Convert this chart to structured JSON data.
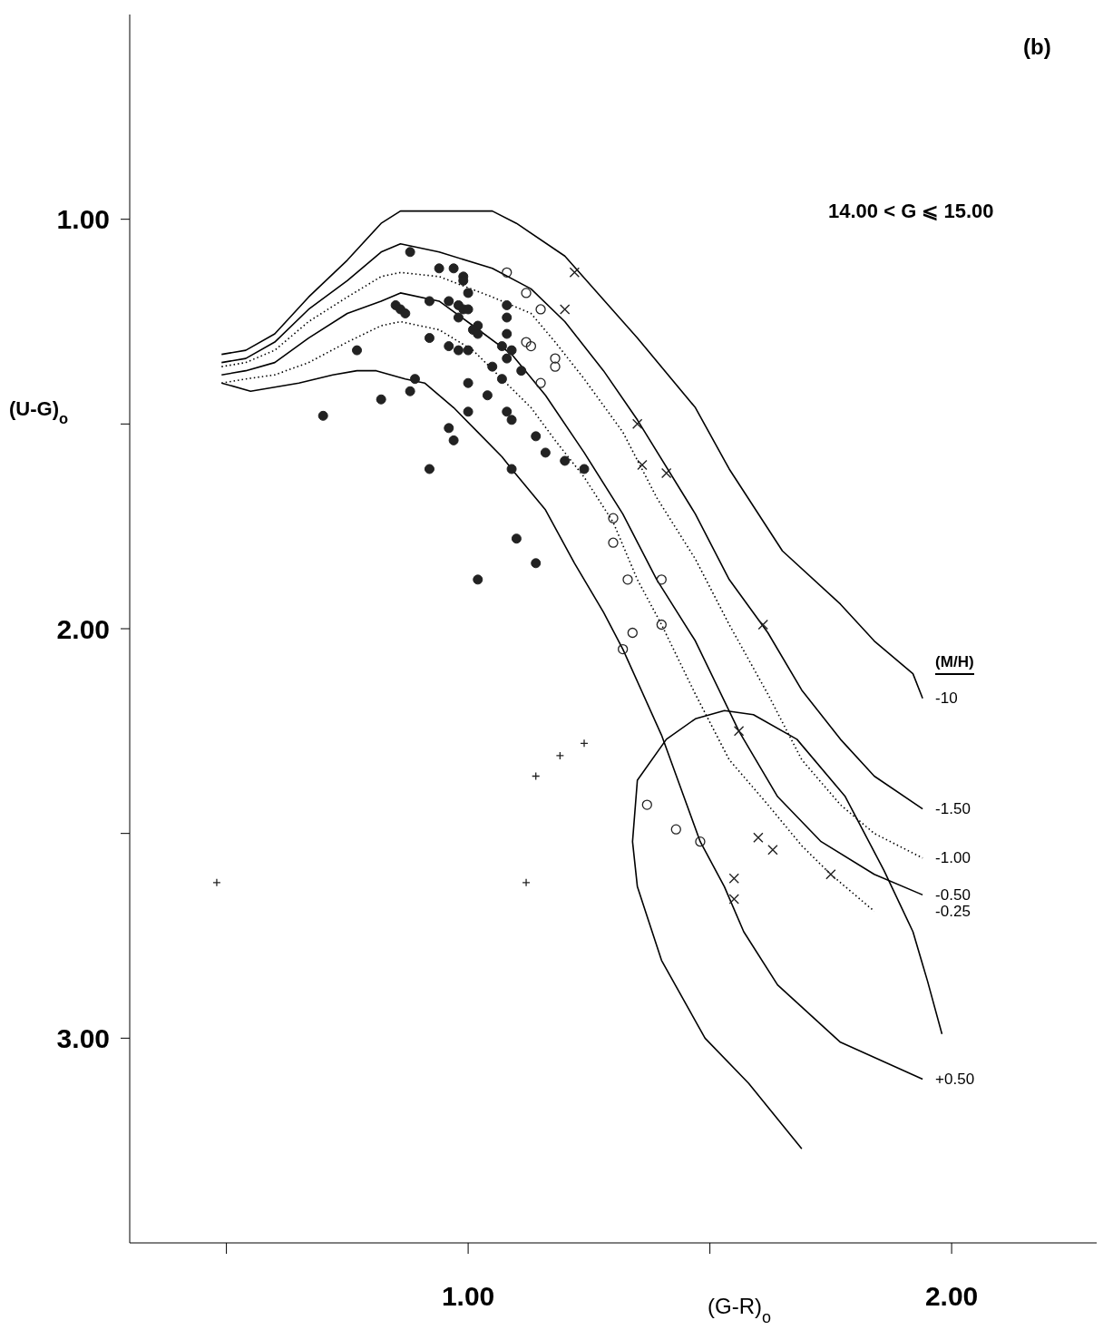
{
  "chart_data": {
    "type": "scatter",
    "annotations": [
      "(b)",
      "14.00 < G ⩽ 15.00"
    ],
    "xlabel": "(G-R)$_{o}$",
    "ylabel": "(U-G)$_{o}$",
    "legend_title": "(M/H)",
    "xlim": [
      0.3,
      2.3
    ],
    "ylim": [
      3.5,
      0.5
    ],
    "xticks": [
      {
        "value": 0.5,
        "label": null
      },
      {
        "value": 1,
        "label": "1.00"
      },
      {
        "value": 1.5,
        "label": null
      },
      {
        "value": 2,
        "label": "2.00"
      }
    ],
    "yticks": [
      {
        "value": 1,
        "label": "1.00"
      },
      {
        "value": 1.5,
        "label": null
      },
      {
        "value": 2,
        "label": "2.00"
      },
      {
        "value": 2.5,
        "label": null
      },
      {
        "value": 3,
        "label": "3.00"
      }
    ],
    "grid": false,
    "legend": "right",
    "series": [
      {
        "name": "-10",
        "type": "line",
        "line_style": "solid",
        "color": "#000000",
        "x": [
          0.49,
          0.54,
          0.6,
          0.67,
          0.75,
          0.82,
          0.86,
          1.05,
          1.1,
          1.2,
          1.35,
          1.47,
          1.54,
          1.65,
          1.77,
          1.84,
          1.92,
          1.94
        ],
        "values": [
          1.33,
          1.32,
          1.28,
          1.19,
          1.1,
          1.01,
          0.98,
          0.98,
          1.01,
          1.09,
          1.29,
          1.46,
          1.61,
          1.81,
          1.94,
          2.03,
          2.11,
          2.17
        ]
      },
      {
        "name": "-1.50",
        "type": "line",
        "line_style": "solid",
        "color": "#000000",
        "x": [
          0.49,
          0.54,
          0.6,
          0.67,
          0.75,
          0.82,
          0.86,
          0.94,
          1.05,
          1.13,
          1.2,
          1.28,
          1.35,
          1.47,
          1.54,
          1.62,
          1.69,
          1.77,
          1.84,
          1.94
        ],
        "values": [
          1.35,
          1.34,
          1.3,
          1.22,
          1.15,
          1.08,
          1.06,
          1.08,
          1.12,
          1.17,
          1.25,
          1.37,
          1.49,
          1.72,
          1.88,
          2.01,
          2.15,
          2.27,
          2.36,
          2.44
        ]
      },
      {
        "name": "-1.00",
        "type": "line",
        "line_style": "dotted",
        "color": "#000000",
        "x": [
          0.49,
          0.54,
          0.6,
          0.67,
          0.75,
          0.82,
          0.86,
          0.94,
          1.05,
          1.13,
          1.18,
          1.24,
          1.32,
          1.39,
          1.47,
          1.54,
          1.62,
          1.69,
          1.77,
          1.84,
          1.94
        ],
        "values": [
          1.36,
          1.35,
          1.32,
          1.25,
          1.19,
          1.14,
          1.13,
          1.14,
          1.19,
          1.23,
          1.3,
          1.39,
          1.52,
          1.68,
          1.83,
          1.99,
          2.16,
          2.32,
          2.43,
          2.5,
          2.56
        ]
      },
      {
        "name": "-0.50",
        "type": "line",
        "line_style": "solid",
        "color": "#000000",
        "x": [
          0.49,
          0.54,
          0.6,
          0.67,
          0.75,
          0.82,
          0.86,
          0.94,
          1.01,
          1.09,
          1.16,
          1.24,
          1.32,
          1.39,
          1.47,
          1.56,
          1.64,
          1.73,
          1.84,
          1.94
        ],
        "values": [
          1.38,
          1.37,
          1.35,
          1.29,
          1.23,
          1.2,
          1.18,
          1.2,
          1.26,
          1.33,
          1.43,
          1.57,
          1.72,
          1.88,
          2.03,
          2.25,
          2.41,
          2.52,
          2.6,
          2.65
        ]
      },
      {
        "name": "-0.25",
        "type": "line",
        "line_style": "dotted",
        "color": "#000000",
        "x": [
          0.49,
          0.54,
          0.6,
          0.67,
          0.75,
          0.82,
          0.86,
          0.94,
          1.01,
          1.07,
          1.13,
          1.18,
          1.24,
          1.3,
          1.35,
          1.4,
          1.47,
          1.54,
          1.62,
          1.69,
          1.75,
          1.84
        ],
        "values": [
          1.4,
          1.39,
          1.38,
          1.35,
          1.3,
          1.26,
          1.25,
          1.27,
          1.32,
          1.39,
          1.46,
          1.54,
          1.63,
          1.74,
          1.88,
          1.99,
          2.16,
          2.32,
          2.43,
          2.53,
          2.6,
          2.69
        ]
      },
      {
        "name": "+0.50",
        "type": "line",
        "line_style": "solid",
        "color": "#000000",
        "x": [
          0.49,
          0.55,
          0.65,
          0.72,
          0.77,
          0.81,
          0.87,
          0.91,
          0.97,
          1.02,
          1.07,
          1.09,
          1.16,
          1.22,
          1.28,
          1.32,
          1.4,
          1.44,
          1.48,
          1.53,
          1.57,
          1.64,
          1.77,
          1.94
        ],
        "values": [
          1.4,
          1.42,
          1.4,
          1.38,
          1.37,
          1.37,
          1.39,
          1.4,
          1.46,
          1.52,
          1.58,
          1.61,
          1.71,
          1.84,
          1.96,
          2.05,
          2.26,
          2.39,
          2.52,
          2.63,
          2.74,
          2.87,
          3.01,
          3.1
        ]
      },
      {
        "type": "line",
        "line_style": "solid",
        "color": "#000000",
        "x": [
          1.69,
          1.58,
          1.49,
          1.4,
          1.35,
          1.34,
          1.35,
          1.41,
          1.47,
          1.53,
          1.59,
          1.68,
          1.78,
          1.86,
          1.92,
          1.95,
          1.98
        ],
        "values": [
          3.27,
          3.11,
          3.0,
          2.81,
          2.63,
          2.52,
          2.37,
          2.27,
          2.22,
          2.2,
          2.21,
          2.27,
          2.41,
          2.59,
          2.74,
          2.86,
          2.99
        ]
      },
      {
        "marker": "circle",
        "color": "#222222",
        "x": [
          0.88,
          0.94,
          0.97,
          0.99,
          0.99,
          1.0,
          0.92,
          0.85,
          0.86,
          0.87,
          0.96,
          0.98,
          0.99,
          1.0,
          1.08,
          1.08,
          0.98,
          1.02,
          1.01,
          1.02,
          1.08,
          1.07,
          1.09,
          1.08,
          0.92,
          0.96,
          0.98,
          1.0,
          0.77,
          1.05,
          1.11,
          1.07,
          0.89,
          0.88,
          1.0,
          1.04,
          0.82,
          0.7,
          1.0,
          1.08,
          1.09,
          0.96,
          0.97,
          1.14,
          1.16,
          1.2,
          1.24,
          1.09,
          0.92,
          1.1,
          1.14,
          1.02
        ],
        "values": [
          1.08,
          1.12,
          1.12,
          1.14,
          1.15,
          1.18,
          1.2,
          1.21,
          1.22,
          1.23,
          1.2,
          1.21,
          1.22,
          1.22,
          1.21,
          1.24,
          1.24,
          1.26,
          1.27,
          1.28,
          1.28,
          1.31,
          1.32,
          1.34,
          1.29,
          1.31,
          1.32,
          1.32,
          1.32,
          1.36,
          1.37,
          1.39,
          1.39,
          1.42,
          1.4,
          1.43,
          1.44,
          1.48,
          1.47,
          1.47,
          1.49,
          1.51,
          1.54,
          1.53,
          1.57,
          1.59,
          1.61,
          1.61,
          1.61,
          1.78,
          1.84,
          1.88
        ]
      },
      {
        "marker": "open_circle",
        "color": "#222222",
        "x": [
          1.08,
          1.12,
          1.15,
          1.12,
          1.13,
          1.18,
          1.18,
          1.15,
          1.3,
          1.3,
          1.4,
          1.33,
          1.4,
          1.34,
          1.32,
          1.37,
          1.43,
          1.48
        ],
        "values": [
          1.13,
          1.18,
          1.22,
          1.3,
          1.31,
          1.34,
          1.36,
          1.4,
          1.73,
          1.79,
          1.88,
          1.88,
          1.99,
          2.01,
          2.05,
          2.43,
          2.49,
          2.52
        ]
      },
      {
        "marker": "cross",
        "color": "#222222",
        "x": [
          1.22,
          1.2,
          1.35,
          1.36,
          1.41,
          1.61,
          1.56,
          1.6,
          1.63,
          1.55,
          1.55,
          1.75
        ],
        "values": [
          1.13,
          1.22,
          1.5,
          1.6,
          1.62,
          1.99,
          2.25,
          2.51,
          2.54,
          2.61,
          2.66,
          2.6
        ]
      },
      {
        "marker": "plus",
        "color": "#222222",
        "x": [
          0.48,
          1.12,
          1.14,
          1.19,
          1.24
        ],
        "values": [
          2.62,
          2.62,
          2.36,
          2.31,
          2.28
        ]
      }
    ]
  }
}
